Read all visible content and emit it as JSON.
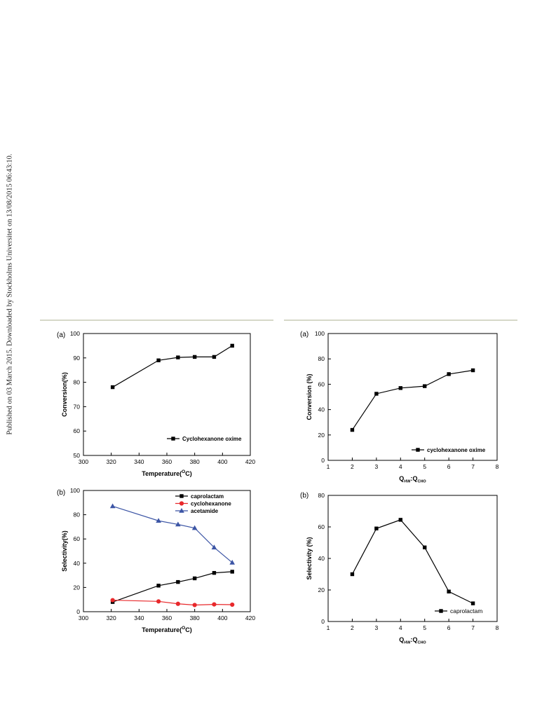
{
  "side_note": "Published on 03 March 2015. Downloaded by Stockholms Universitet on 13/08/2015 06:43:10.",
  "chart_data": [
    {
      "id": "left-a",
      "panel": "(a)",
      "type": "line",
      "xlabel": "Temperature(",
      "xlabel_super": "O",
      "xlabel_tail": "C)",
      "ylabel": "Conversion(%)",
      "xlim": [
        300,
        420
      ],
      "ylim": [
        50,
        100
      ],
      "xticks": [
        300,
        320,
        340,
        360,
        380,
        400,
        420
      ],
      "yticks": [
        50,
        60,
        70,
        80,
        90,
        100
      ],
      "grid": false,
      "legend": "bottom-right",
      "series": [
        {
          "name": "Cyclohexanone oxime",
          "color": "#000000",
          "marker": "square",
          "x": [
            321,
            354,
            368,
            380,
            394,
            407
          ],
          "y": [
            78,
            89,
            90.2,
            90.4,
            90.4,
            95
          ]
        }
      ]
    },
    {
      "id": "left-b",
      "panel": "(b)",
      "type": "line",
      "xlabel": "Temperature(",
      "xlabel_super": "O",
      "xlabel_tail": "C)",
      "ylabel": "Selectivity(%)",
      "xlim": [
        300,
        420
      ],
      "ylim": [
        0,
        100
      ],
      "xticks": [
        300,
        320,
        340,
        360,
        380,
        400,
        420
      ],
      "yticks": [
        0,
        20,
        40,
        60,
        80,
        100
      ],
      "grid": false,
      "legend": "top-right",
      "series": [
        {
          "name": "caprolactam",
          "color": "#000000",
          "marker": "square",
          "x": [
            321,
            354,
            368,
            380,
            394,
            407
          ],
          "y": [
            8,
            21.5,
            24.5,
            27.5,
            32,
            33
          ]
        },
        {
          "name": "cyclohexanone",
          "color": "#e8282b",
          "marker": "circle",
          "x": [
            321,
            354,
            368,
            380,
            394,
            407
          ],
          "y": [
            9.5,
            8.5,
            6.5,
            5.5,
            6,
            5.8
          ]
        },
        {
          "name": "acetamide",
          "color": "#3c55a5",
          "marker": "triangle",
          "x": [
            321,
            354,
            368,
            380,
            394,
            407
          ],
          "y": [
            87,
            75,
            72,
            69,
            53,
            40.5
          ]
        }
      ]
    },
    {
      "id": "right-a",
      "panel": "(a)",
      "type": "line",
      "xlabel": "Q",
      "xlabel_sub1": "HW",
      "xlabel_mid": ":Q",
      "xlabel_sub2": "CHO",
      "ylabel": "Conversion (%)",
      "xlim": [
        1,
        8
      ],
      "ylim": [
        0,
        100
      ],
      "xticks": [
        1,
        2,
        3,
        4,
        5,
        6,
        7,
        8
      ],
      "yticks": [
        0,
        20,
        40,
        60,
        80,
        100
      ],
      "grid": false,
      "legend": "bottom-right",
      "series": [
        {
          "name": "cyclohexanone oxime",
          "color": "#000000",
          "marker": "square",
          "x": [
            2,
            3,
            4,
            5,
            6,
            7
          ],
          "y": [
            24,
            52.5,
            57,
            58.5,
            68,
            71
          ]
        }
      ]
    },
    {
      "id": "right-b",
      "panel": "(b)",
      "type": "line",
      "xlabel": "Q",
      "xlabel_sub1": "HW",
      "xlabel_mid": ":Q",
      "xlabel_sub2": "CHO",
      "ylabel": "Selectivity (%)",
      "xlim": [
        1,
        8
      ],
      "ylim": [
        0,
        80
      ],
      "xticks": [
        1,
        2,
        3,
        4,
        5,
        6,
        7,
        8
      ],
      "yticks": [
        0,
        20,
        40,
        60,
        80
      ],
      "grid": false,
      "legend": "bottom-right",
      "series": [
        {
          "name": "caprolactam",
          "color": "#000000",
          "marker": "square",
          "x": [
            2,
            3,
            4,
            5,
            6,
            7
          ],
          "y": [
            30,
            59,
            64.5,
            47,
            19,
            11.5
          ]
        }
      ]
    }
  ]
}
